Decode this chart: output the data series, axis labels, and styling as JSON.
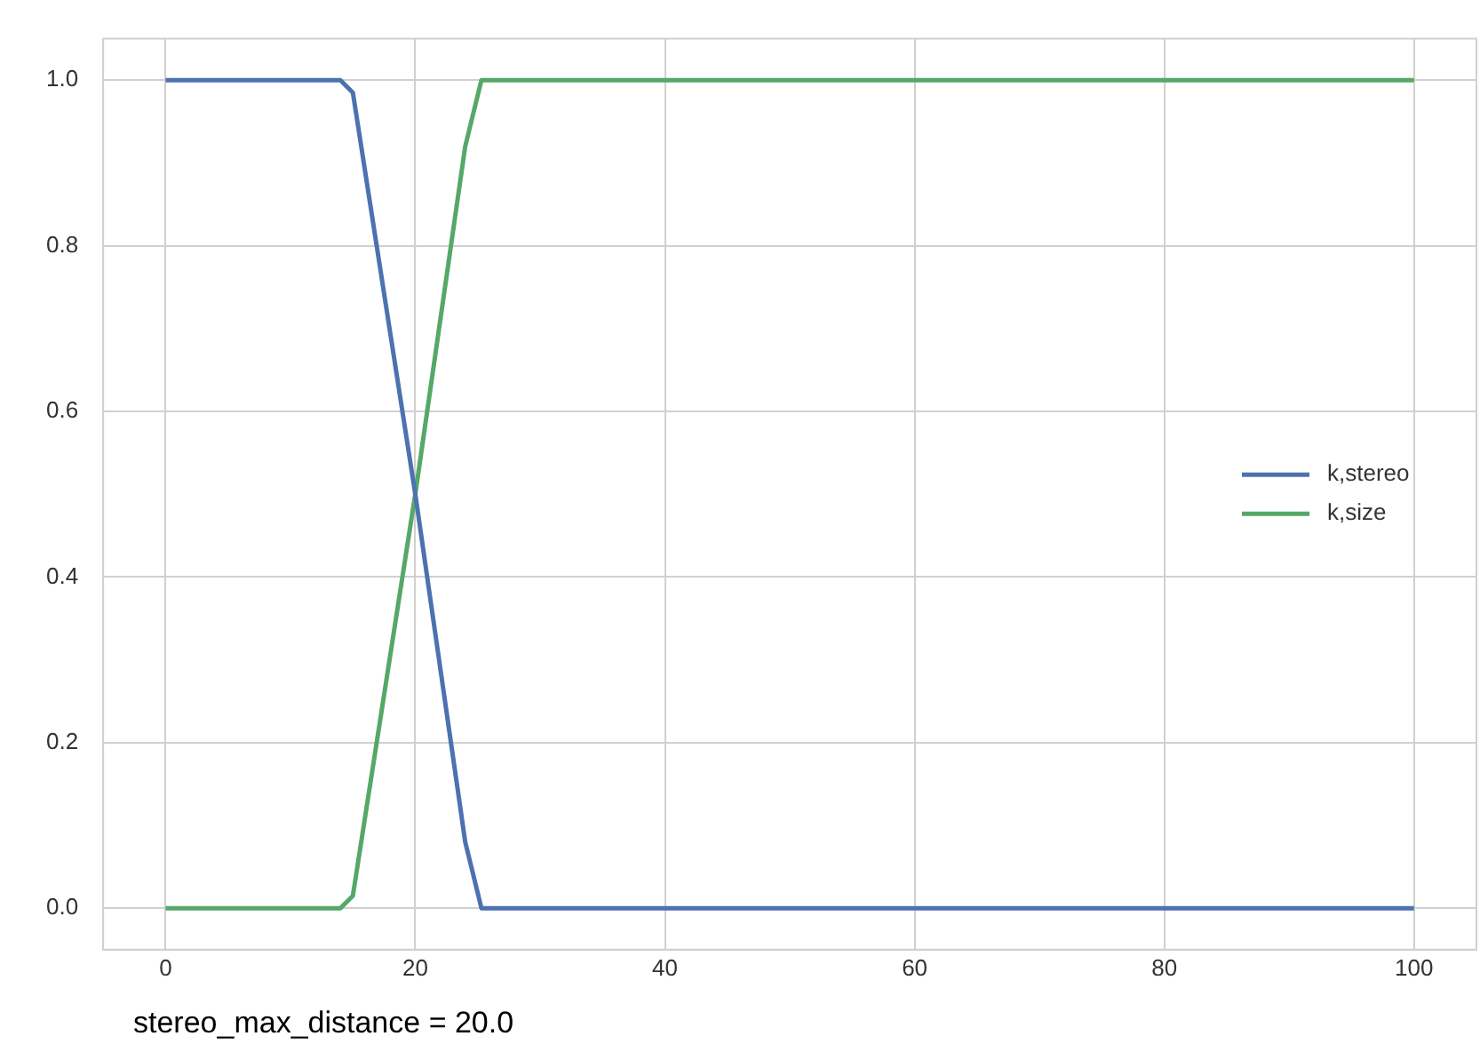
{
  "chart_data": {
    "type": "line",
    "x": [
      0,
      14,
      15,
      20,
      24,
      25.3,
      100
    ],
    "series": [
      {
        "name": "k,stereo",
        "color": "#4c72b0",
        "values": [
          1,
          1,
          0.985,
          0.5,
          0.08,
          0,
          0
        ]
      },
      {
        "name": "k,size",
        "color": "#55a868",
        "values": [
          0,
          0,
          0.015,
          0.5,
          0.92,
          1,
          1
        ]
      }
    ],
    "xlim": [
      -5,
      105
    ],
    "xticks": [
      0,
      20,
      40,
      60,
      80,
      100
    ],
    "ylim": [
      -0.05,
      1.05
    ],
    "yticks": [
      {
        "value": 0,
        "label": "0.0"
      },
      {
        "value": 0.2,
        "label": "0.2"
      },
      {
        "value": 0.4,
        "label": "0.4"
      },
      {
        "value": 0.6,
        "label": "0.6"
      },
      {
        "value": 0.8,
        "label": "0.8"
      },
      {
        "value": 1,
        "label": "1.0"
      }
    ],
    "grid": true,
    "legend": "center right",
    "marker": "none",
    "line_style": "solid",
    "annotations": [
      "stereo_max_distance = 20.0"
    ]
  }
}
